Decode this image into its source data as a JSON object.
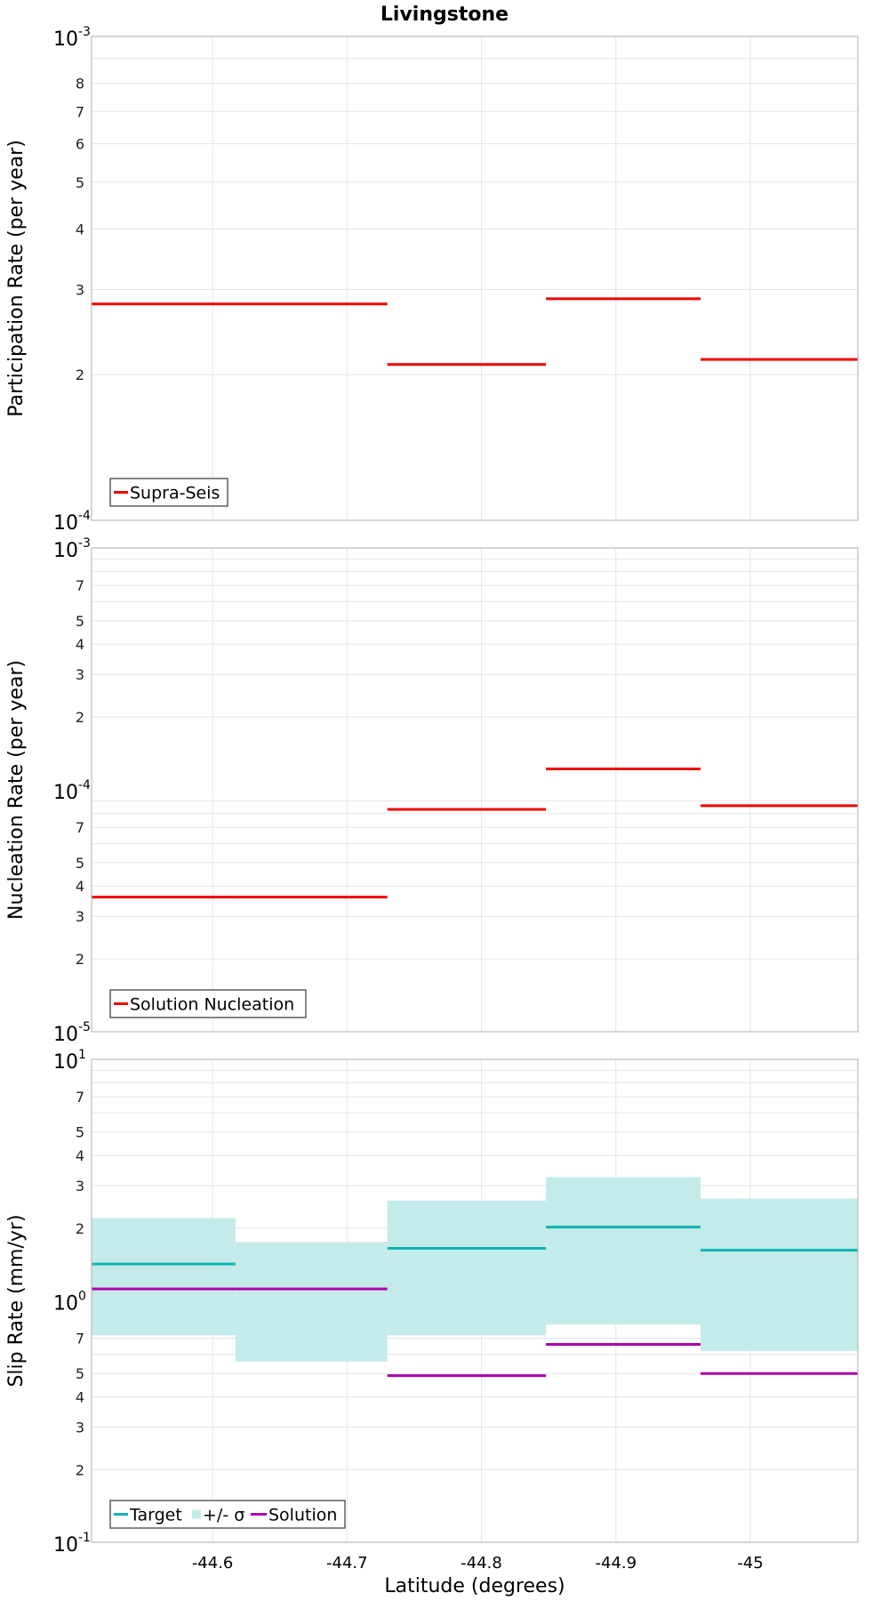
{
  "title": "Livingstone",
  "colors": {
    "supra_seis": "#ee0000",
    "nucleation": "#ee0000",
    "target": "#10b3b3",
    "band": "#c3ebea",
    "solution": "#aa00aa",
    "grid": "#e6e6e6",
    "frame": "#bbbbbb"
  },
  "chart_data": [
    {
      "type": "line",
      "name": "participation",
      "ylabel": "Participation Rate (per year)",
      "xlabel": "",
      "yscale": "log",
      "ylim": [
        0.0001,
        0.001
      ],
      "y_tick_minor": [
        2,
        3,
        4,
        5,
        6,
        7,
        8
      ],
      "y_tick_major": [
        {
          "base": "10",
          "exp": "-4"
        },
        {
          "base": "10",
          "exp": "-3"
        }
      ],
      "legend_position": "bottom-left",
      "series": [
        {
          "name": "Supra-Seis",
          "color": "#ee0000",
          "segments": [
            {
              "x0": -44.51,
              "x1": -44.73,
              "y": 0.00028
            },
            {
              "x0": -44.73,
              "x1": -44.848,
              "y": 0.00021
            },
            {
              "x0": -44.848,
              "x1": -44.963,
              "y": 0.000287
            },
            {
              "x0": -44.963,
              "x1": -45.08,
              "y": 0.000215
            }
          ]
        }
      ]
    },
    {
      "type": "line",
      "name": "nucleation",
      "ylabel": "Nucleation Rate (per year)",
      "xlabel": "",
      "yscale": "log",
      "ylim": [
        1e-05,
        0.001
      ],
      "y_tick_minor": [
        2,
        3,
        4,
        5,
        7
      ],
      "y_tick_major": [
        {
          "base": "10",
          "exp": "-5"
        },
        {
          "base": "10",
          "exp": "-4"
        },
        {
          "base": "10",
          "exp": "-3"
        }
      ],
      "legend_position": "bottom-left",
      "series": [
        {
          "name": "Solution Nucleation",
          "color": "#ee0000",
          "segments": [
            {
              "x0": -44.51,
              "x1": -44.617,
              "y": 3.6e-05
            },
            {
              "x0": -44.617,
              "x1": -44.73,
              "y": 3.6e-05
            },
            {
              "x0": -44.73,
              "x1": -44.848,
              "y": 8.3e-05
            },
            {
              "x0": -44.848,
              "x1": -44.963,
              "y": 0.000122
            },
            {
              "x0": -44.963,
              "x1": -45.08,
              "y": 8.6e-05
            }
          ]
        }
      ]
    },
    {
      "type": "line",
      "name": "slip",
      "ylabel": "Slip Rate (mm/yr)",
      "xlabel": "Latitude (degrees)",
      "yscale": "log",
      "ylim": [
        0.1,
        10
      ],
      "xlim": [
        -44.51,
        -45.08
      ],
      "x_ticks": [
        {
          "value": -44.6,
          "label": "-44.6"
        },
        {
          "value": -44.7,
          "label": "-44.7"
        },
        {
          "value": -44.8,
          "label": "-44.8"
        },
        {
          "value": -44.9,
          "label": "-44.9"
        },
        {
          "value": -45.0,
          "label": "-45"
        }
      ],
      "y_tick_minor": [
        2,
        3,
        4,
        5,
        7
      ],
      "y_tick_major": [
        {
          "base": "10",
          "exp": "-1"
        },
        {
          "base": "10",
          "exp": "0"
        },
        {
          "base": "10",
          "exp": "1"
        }
      ],
      "legend_position": "bottom-left",
      "legend": [
        "Target",
        "+/- σ",
        "Solution"
      ],
      "band": {
        "name": "+/- σ",
        "color": "#c3ebea",
        "segments": [
          {
            "x0": -44.51,
            "x1": -44.617,
            "y_low": 0.72,
            "y_high": 2.2
          },
          {
            "x0": -44.617,
            "x1": -44.73,
            "y_low": 0.56,
            "y_high": 1.75
          },
          {
            "x0": -44.73,
            "x1": -44.848,
            "y_low": 0.72,
            "y_high": 2.6
          },
          {
            "x0": -44.848,
            "x1": -44.963,
            "y_low": 0.8,
            "y_high": 3.25
          },
          {
            "x0": -44.963,
            "x1": -45.08,
            "y_low": 0.62,
            "y_high": 2.65
          }
        ]
      },
      "series": [
        {
          "name": "Target",
          "color": "#10b3b3",
          "segments": [
            {
              "x0": -44.51,
              "x1": -44.617,
              "y": 1.42
            },
            {
              "x0": -44.73,
              "x1": -44.848,
              "y": 1.65
            },
            {
              "x0": -44.848,
              "x1": -44.963,
              "y": 2.02
            },
            {
              "x0": -44.963,
              "x1": -45.08,
              "y": 1.62
            }
          ]
        },
        {
          "name": "Solution",
          "color": "#aa00aa",
          "segments": [
            {
              "x0": -44.51,
              "x1": -44.617,
              "y": 1.12
            },
            {
              "x0": -44.617,
              "x1": -44.73,
              "y": 1.12
            },
            {
              "x0": -44.73,
              "x1": -44.848,
              "y": 0.49
            },
            {
              "x0": -44.848,
              "x1": -44.963,
              "y": 0.66
            },
            {
              "x0": -44.963,
              "x1": -45.08,
              "y": 0.5
            }
          ]
        }
      ]
    }
  ]
}
